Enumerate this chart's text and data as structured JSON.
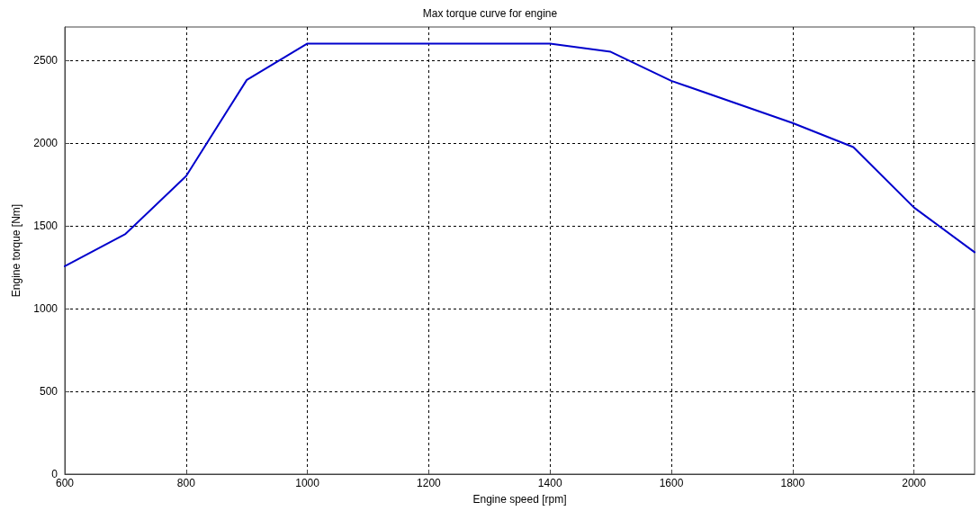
{
  "chart_data": {
    "type": "line",
    "title": "Max torque curve for engine",
    "xlabel": "Engine speed [rpm]",
    "ylabel": "Engine torque [Nm]",
    "x": [
      600,
      700,
      800,
      900,
      1000,
      1400,
      1500,
      1600,
      1800,
      1900,
      2000,
      2100
    ],
    "series": [
      {
        "color": "#0000cc",
        "values": [
          1255,
          1450,
          1800,
          2380,
          2600,
          2600,
          2550,
          2375,
          2120,
          1975,
          1610,
          1340
        ]
      }
    ],
    "xlim": [
      600,
      2100
    ],
    "xticks": [
      600,
      800,
      1000,
      1200,
      1400,
      1600,
      1800,
      2000
    ],
    "ylim": [
      0,
      2700
    ],
    "yticks": [
      0,
      500,
      1000,
      1500,
      2000,
      2500
    ],
    "grid": true,
    "marker": "none",
    "line_style": "solid"
  }
}
